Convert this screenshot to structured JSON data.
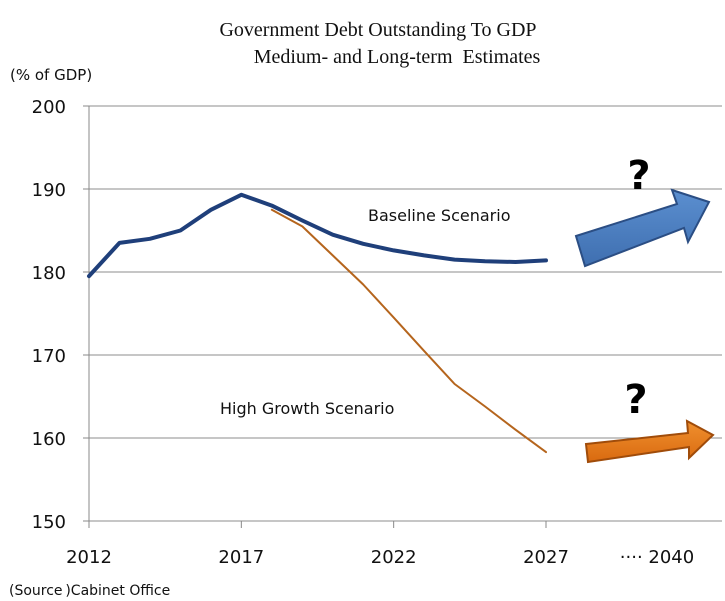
{
  "chart_data": {
    "type": "line",
    "title": "Government Debt Outstanding To GDP",
    "subtitle": "Medium- and Long-term  Estimates",
    "ylabel": "(% of GDP)",
    "ylim": [
      150,
      200
    ],
    "yticks": [
      150,
      160,
      170,
      180,
      190,
      200
    ],
    "xlim": [
      2012,
      2027
    ],
    "xticks": [
      2012,
      2017,
      2022,
      2027
    ],
    "x_extension_label": "···· 2040",
    "grid": "horizontal",
    "source": "(Source )Cabinet Office",
    "series": [
      {
        "name": "Baseline Scenario",
        "color": "#1f3f7a",
        "x": [
          2012,
          2013,
          2014,
          2015,
          2016,
          2017,
          2018,
          2019,
          2020,
          2021,
          2022,
          2023,
          2024,
          2025,
          2026,
          2027
        ],
        "values": [
          179.5,
          183.5,
          184.0,
          185.0,
          187.5,
          189.3,
          188.0,
          186.2,
          184.5,
          183.4,
          182.6,
          182.0,
          181.5,
          181.3,
          181.2,
          181.4
        ]
      },
      {
        "name": "High Growth Scenario",
        "color": "#b5651d",
        "x": [
          2018,
          2019,
          2020,
          2021,
          2022,
          2023,
          2024,
          2025,
          2026,
          2027
        ],
        "values": [
          187.5,
          185.5,
          182.0,
          178.5,
          174.5,
          170.5,
          166.5,
          163.8,
          161.0,
          158.3
        ]
      }
    ],
    "annotations": [
      {
        "text": "?",
        "color": "#1a1a1a",
        "target": "Baseline Scenario",
        "arrow_color": "#4a7cc0"
      },
      {
        "text": "?",
        "color": "#1a1a1a",
        "target": "High Growth Scenario",
        "arrow_color": "#e07a1f"
      }
    ]
  }
}
